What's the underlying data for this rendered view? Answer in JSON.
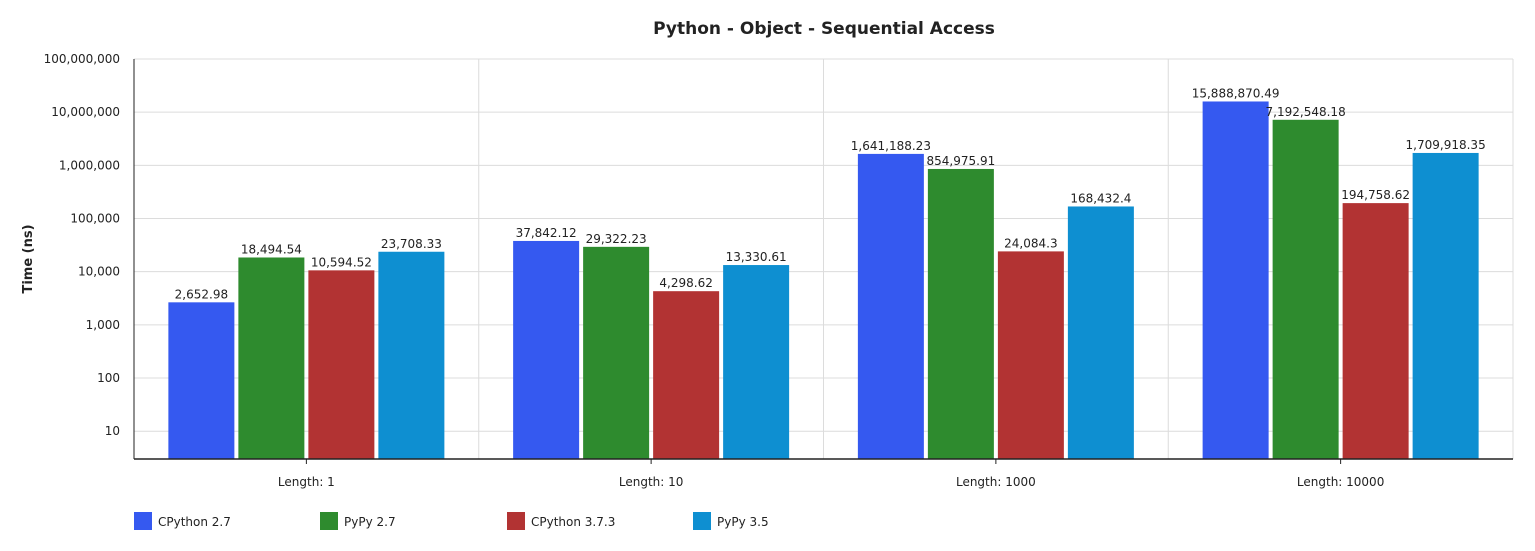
{
  "chart_data": {
    "type": "bar",
    "title": "Python - Object - Sequential Access",
    "xlabel": "",
    "ylabel": "Time (ns)",
    "yscale": "log",
    "ylim": [
      3,
      100000000
    ],
    "yticks": [
      10,
      100,
      1000,
      10000,
      100000,
      1000000,
      10000000,
      100000000
    ],
    "ytick_labels": [
      "10",
      "100",
      "1,000",
      "10,000",
      "100,000",
      "1,000,000",
      "10,000,000",
      "100,000,000"
    ],
    "grid": true,
    "legend_position": "bottom-left",
    "categories": [
      "Length: 1",
      "Length: 10",
      "Length: 1000",
      "Length: 10000"
    ],
    "series": [
      {
        "name": "CPython 2.7",
        "color": "#3559f0",
        "values": [
          2652.98,
          37842.12,
          1641188.23,
          15888870.49
        ],
        "labels": [
          "2,652.98",
          "37,842.12",
          "1,641,188.23",
          "15,888,870.49"
        ]
      },
      {
        "name": "PyPy 2.7",
        "color": "#2e8b2e",
        "values": [
          18494.54,
          29322.23,
          854975.91,
          7192548.18
        ],
        "labels": [
          "18,494.54",
          "29,322.23",
          "854,975.91",
          "7,192,548.18"
        ]
      },
      {
        "name": "CPython 3.7.3",
        "color": "#b23333",
        "values": [
          10594.52,
          4298.62,
          24084.3,
          194758.62
        ],
        "labels": [
          "10,594.52",
          "4,298.62",
          "24,084.3",
          "194,758.62"
        ]
      },
      {
        "name": "PyPy 3.5",
        "color": "#0e8fd1",
        "values": [
          23708.33,
          13330.61,
          168432.4,
          1709918.35
        ],
        "labels": [
          "23,708.33",
          "13,330.61",
          "168,432.4",
          "1,709,918.35"
        ]
      }
    ]
  }
}
